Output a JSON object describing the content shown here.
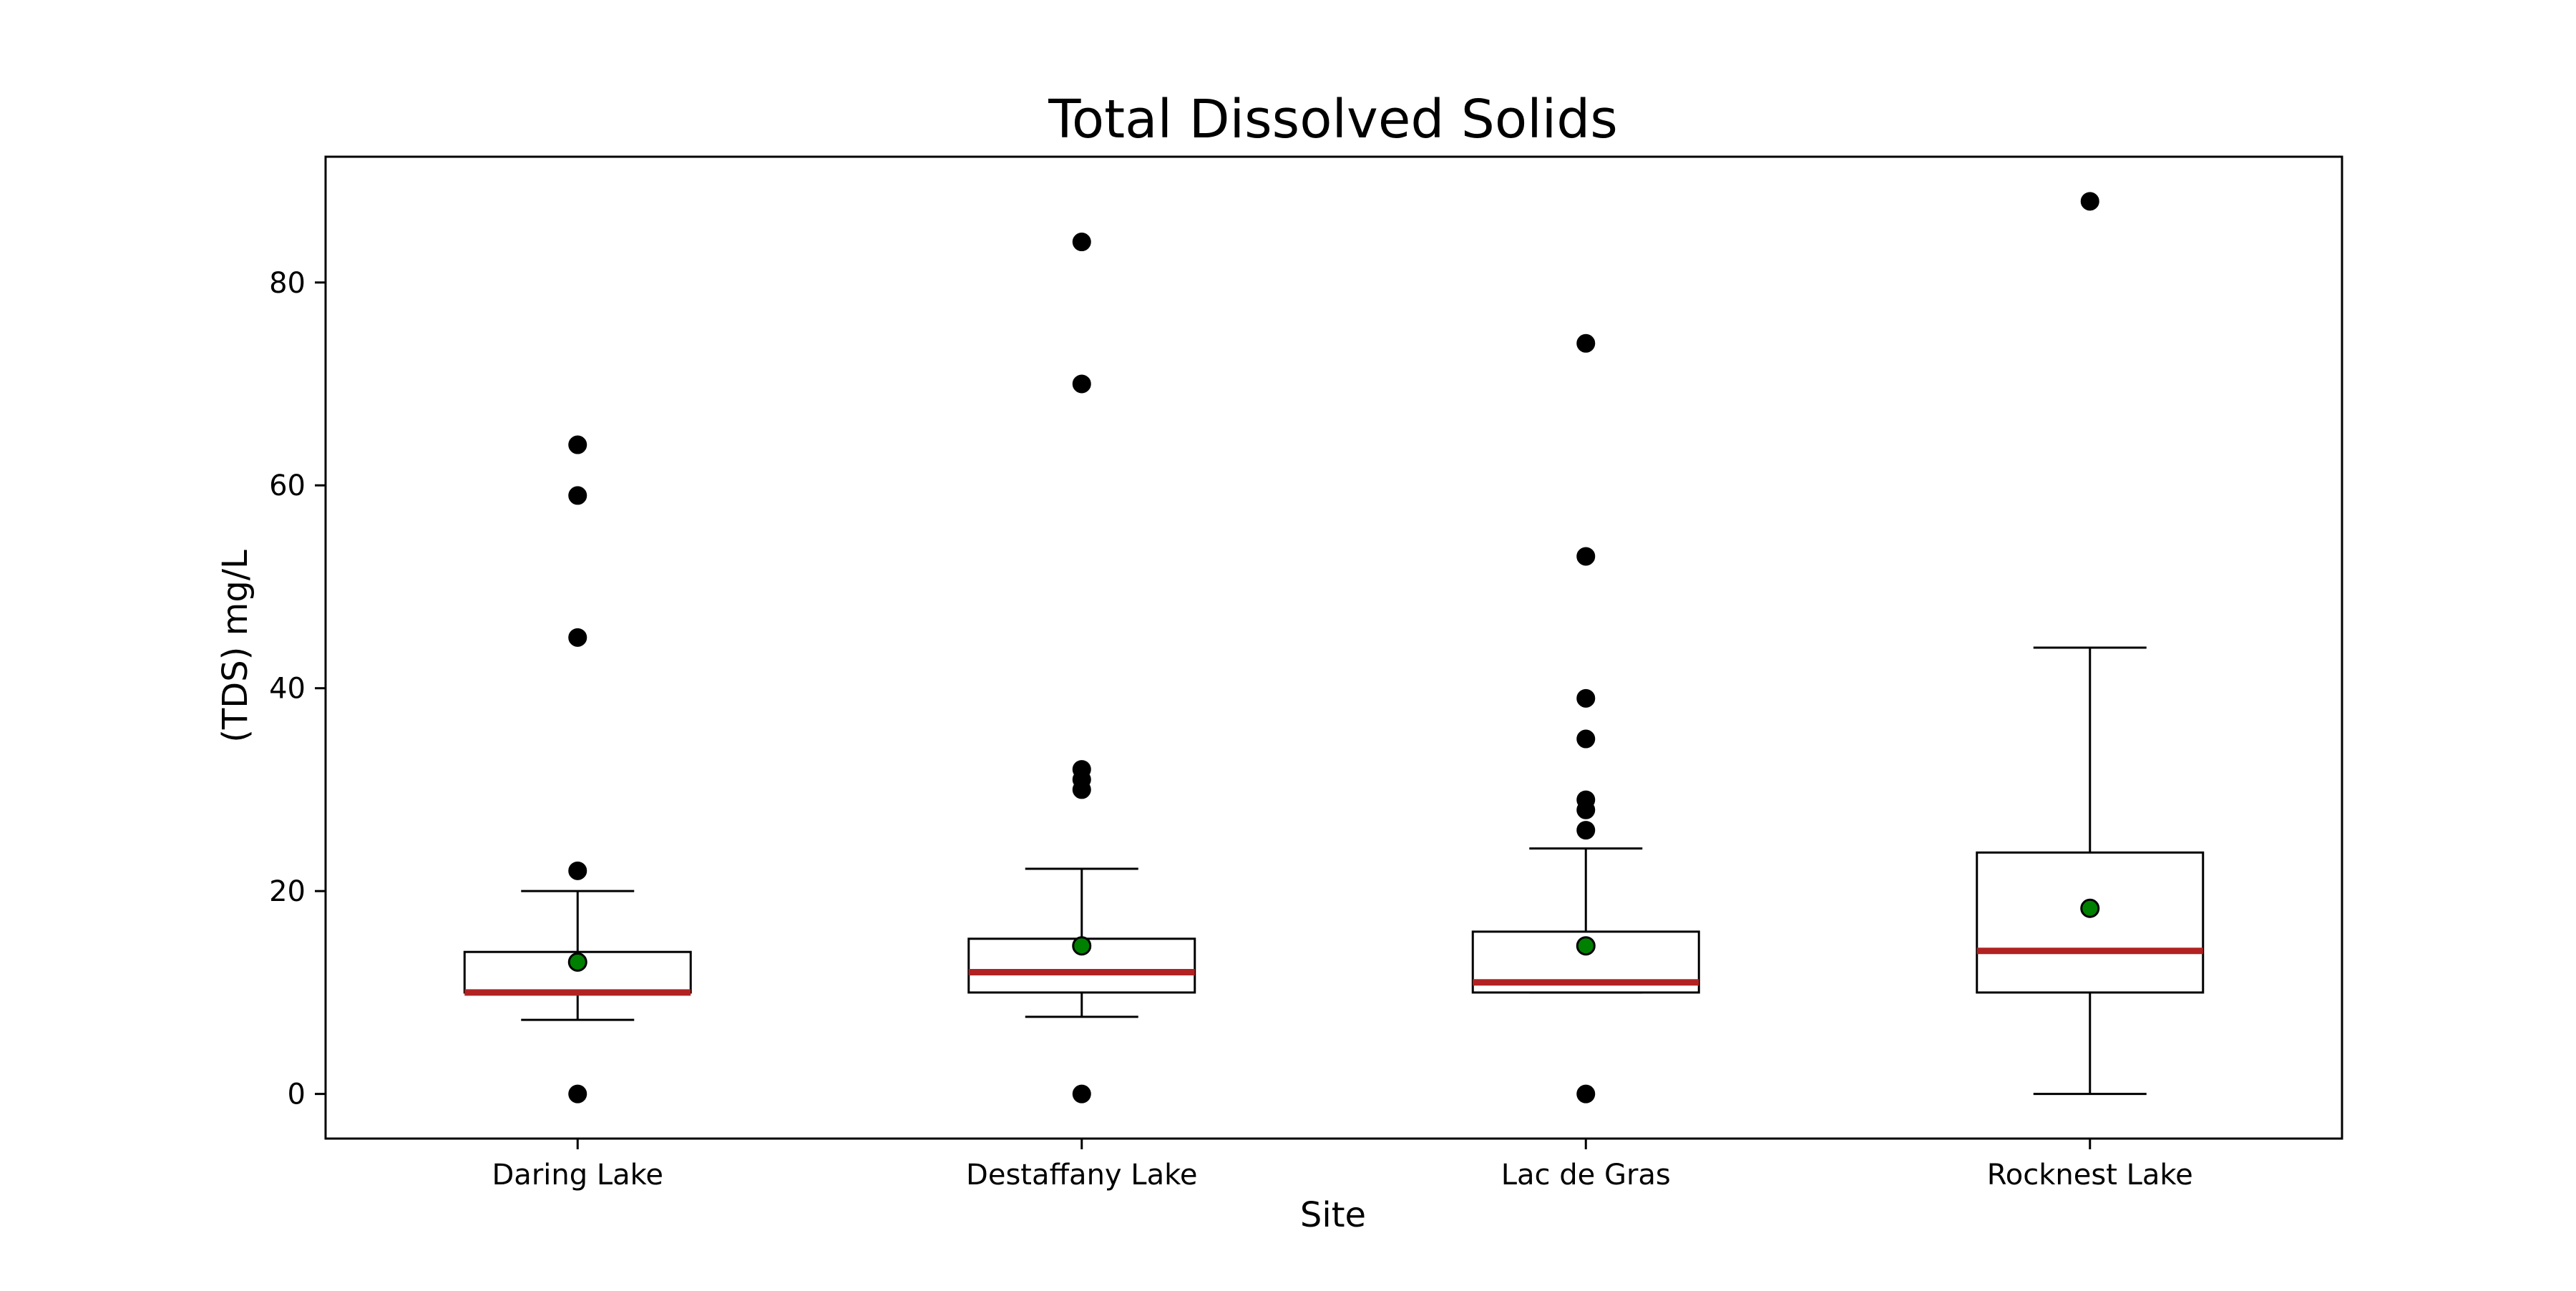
{
  "chart_data": {
    "type": "box",
    "title": "Total Dissolved Solids",
    "xlabel": "Site",
    "ylabel": "(TDS) mg/L",
    "ylim": [
      -4.4,
      92.4
    ],
    "yticks": [
      0,
      20,
      40,
      60,
      80
    ],
    "grid": false,
    "legend": "none",
    "categories": [
      "Daring Lake",
      "Destaffany Lake",
      "Lac de Gras",
      "Rocknest Lake"
    ],
    "series": [
      {
        "q1": 10,
        "median": 10,
        "q3": 14,
        "whisker_low": 7.3,
        "whisker_high": 20,
        "mean": 13,
        "outliers": [
          0,
          22,
          45,
          59,
          64
        ]
      },
      {
        "q1": 10,
        "median": 12,
        "q3": 15.3,
        "whisker_low": 7.6,
        "whisker_high": 22.2,
        "mean": 14.6,
        "outliers": [
          0,
          30,
          31,
          32,
          70,
          84
        ]
      },
      {
        "q1": 10,
        "median": 11,
        "q3": 16,
        "whisker_low": 10,
        "whisker_high": 24.2,
        "mean": 14.6,
        "outliers": [
          0,
          26,
          28,
          29,
          35,
          39,
          53,
          74
        ]
      },
      {
        "q1": 10,
        "median": 14.1,
        "q3": 23.8,
        "whisker_low": 0,
        "whisker_high": 44,
        "mean": 18.3,
        "outliers": [
          88
        ]
      }
    ],
    "colors": {
      "median": "#b22222",
      "mean": "#008000",
      "outlier": "#000000",
      "box": "#000000"
    }
  }
}
